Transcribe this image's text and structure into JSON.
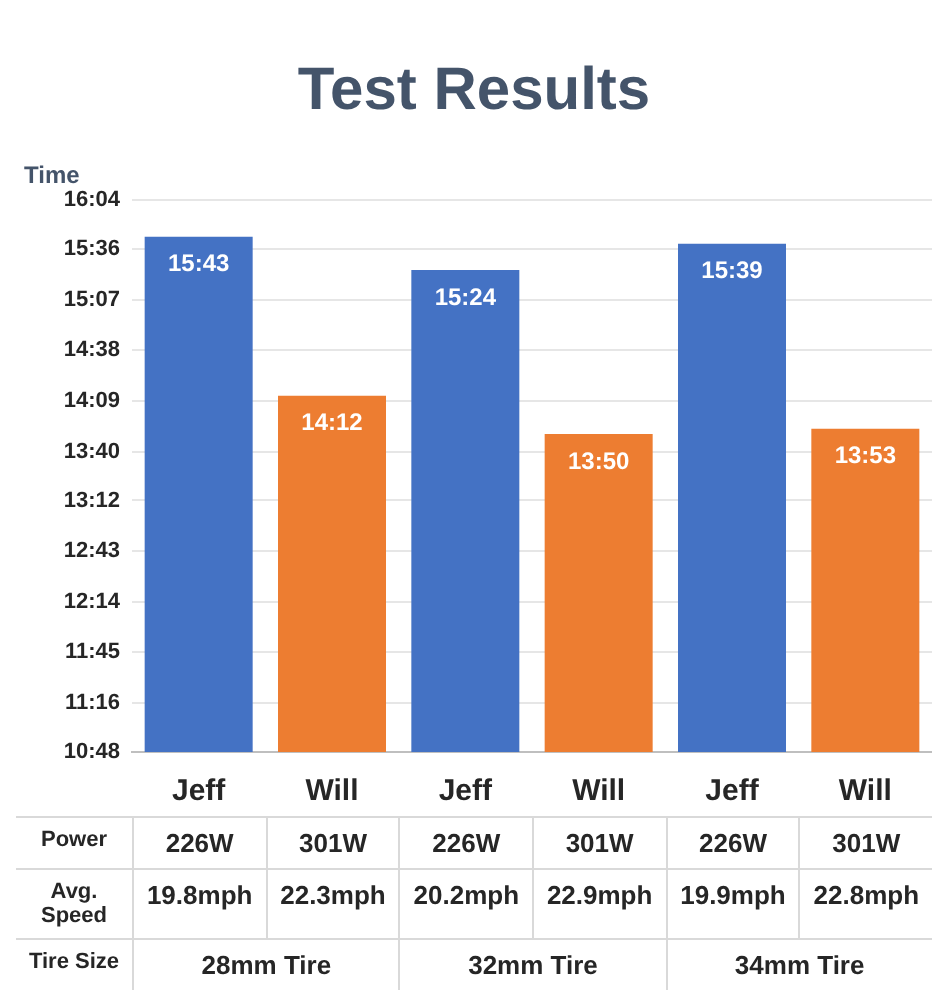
{
  "chart_data": {
    "type": "bar",
    "title": "Test Results",
    "ylabel": "Time",
    "categories": [
      "Jeff",
      "Will",
      "Jeff",
      "Will",
      "Jeff",
      "Will"
    ],
    "values": [
      15.7167,
      14.2,
      15.4,
      13.8333,
      15.65,
      13.8833
    ],
    "value_labels": [
      "15:43",
      "14:12",
      "15:24",
      "13:50",
      "15:39",
      "13:53"
    ],
    "colors": [
      "#4472c4",
      "#ed7d31",
      "#4472c4",
      "#ed7d31",
      "#4472c4",
      "#ed7d31"
    ],
    "ylim": [
      10.8,
      16.0667
    ],
    "yticks": [
      {
        "value": 10.8,
        "label": "10:48"
      },
      {
        "value": 11.2667,
        "label": "11:16"
      },
      {
        "value": 11.75,
        "label": "11:45"
      },
      {
        "value": 12.2333,
        "label": "12:14"
      },
      {
        "value": 12.7167,
        "label": "12:43"
      },
      {
        "value": 13.2,
        "label": "13:12"
      },
      {
        "value": 13.6667,
        "label": "13:40"
      },
      {
        "value": 14.15,
        "label": "14:09"
      },
      {
        "value": 14.6333,
        "label": "14:38"
      },
      {
        "value": 15.1167,
        "label": "15:07"
      },
      {
        "value": 15.6,
        "label": "15:36"
      },
      {
        "value": 16.0667,
        "label": "16:04"
      }
    ],
    "grid": "y",
    "annotations": [
      "Power",
      "226W",
      "301W",
      "226W",
      "301W",
      "226W",
      "301W",
      "Avg. Speed",
      "19.8mph",
      "22.3mph",
      "20.2mph",
      "22.9mph",
      "19.9mph",
      "22.8mph",
      "Tire Size",
      "28mm Tire",
      "32mm Tire",
      "34mm Tire"
    ]
  }
}
